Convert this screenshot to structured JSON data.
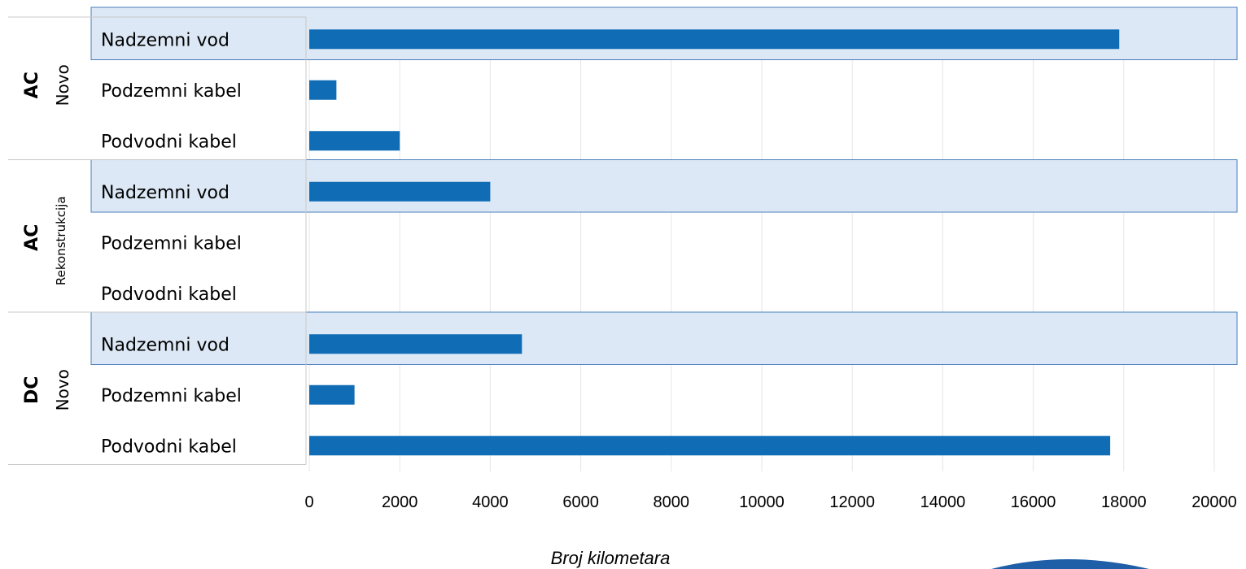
{
  "chart_data": {
    "type": "bar",
    "orientation": "horizontal",
    "xlabel": "Broj kilometara",
    "xlim": [
      0,
      20000
    ],
    "xticks": [
      "0",
      "2000",
      "4000",
      "6000",
      "8000",
      "10000",
      "12000",
      "14000",
      "16000",
      "18000",
      "20000"
    ],
    "grid": "vertical",
    "bar_color": "#0F6CB5",
    "highlight_color": "#DCE8F5",
    "groups": [
      {
        "bold": "AC",
        "sub": "Novo",
        "categories": [
          "Nadzemni vod",
          "Podzemni kabel",
          "Podvodni kabel"
        ],
        "values": [
          17900,
          600,
          2000
        ]
      },
      {
        "bold": "AC",
        "sub": "Rekonstrukcija",
        "categories": [
          "Nadzemni vod",
          "Podzemni kabel",
          "Podvodni kabel"
        ],
        "values": [
          4000,
          0,
          0
        ]
      },
      {
        "bold": "DC",
        "sub": "Novo",
        "categories": [
          "Nadzemni vod",
          "Podzemni kabel",
          "Podvodni kabel"
        ],
        "values": [
          4700,
          1000,
          17700
        ]
      }
    ]
  }
}
